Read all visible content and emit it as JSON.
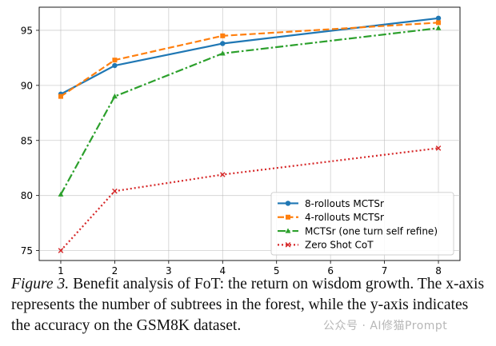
{
  "chart_data": {
    "type": "line",
    "title": "",
    "xlabel": "",
    "ylabel": "",
    "x": [
      1,
      2,
      4,
      8
    ],
    "xticks": [
      1,
      2,
      3,
      4,
      5,
      6,
      7,
      8
    ],
    "yticks": [
      75,
      80,
      85,
      90,
      95
    ],
    "xlim": [
      0.6,
      8.4
    ],
    "ylim": [
      74.1,
      97.1
    ],
    "grid": true,
    "legend_position": "lower-right",
    "series": [
      {
        "name": "8-rollouts MCTSr",
        "values": [
          89.2,
          91.8,
          93.8,
          96.1
        ],
        "color": "#1f77b4",
        "style": "solid",
        "marker": "circle"
      },
      {
        "name": "4-rollouts MCTSr",
        "values": [
          89.0,
          92.3,
          94.5,
          95.7
        ],
        "color": "#ff7f0e",
        "style": "dashed",
        "marker": "square"
      },
      {
        "name": "MCTSr (one turn self refine)",
        "values": [
          80.1,
          89.0,
          92.9,
          95.2
        ],
        "color": "#2ca02c",
        "style": "dashdot",
        "marker": "triangle"
      },
      {
        "name": "Zero Shot CoT",
        "values": [
          75.0,
          80.4,
          81.9,
          84.3
        ],
        "color": "#d62728",
        "style": "dotted",
        "marker": "x"
      }
    ]
  },
  "caption": {
    "label": "Figure 3.",
    "text": " Benefit analysis of FoT: the return on wisdom growth. The x-axis represents the number of subtrees in the forest, while the y-axis indicates the accuracy on the GSM8K dataset."
  },
  "watermark": "公众号 · AI修猫Prompt"
}
